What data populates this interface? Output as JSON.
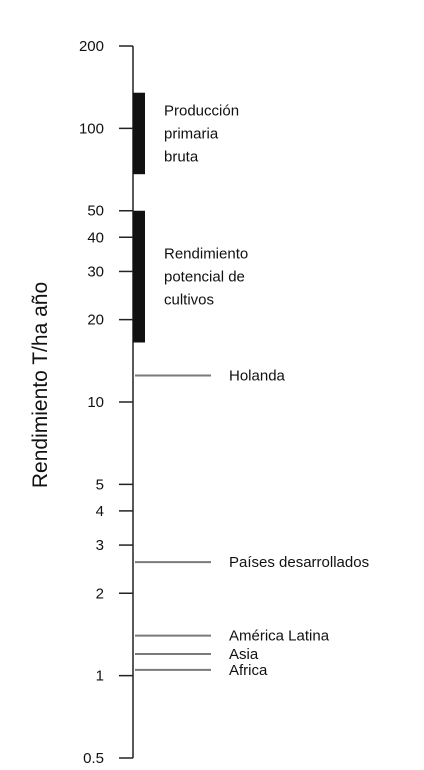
{
  "chart_data": {
    "type": "log-scale range chart",
    "ylabel": "Rendimiento T/ha año",
    "yscale": "log",
    "ylim": [
      0.5,
      200
    ],
    "yticks": [
      {
        "value": 200,
        "label": "200"
      },
      {
        "value": 100,
        "label": "100"
      },
      {
        "value": 50,
        "label": "50"
      },
      {
        "value": 40,
        "label": "40"
      },
      {
        "value": 30,
        "label": "30"
      },
      {
        "value": 20,
        "label": "20"
      },
      {
        "value": 10,
        "label": "10"
      },
      {
        "value": 5,
        "label": "5"
      },
      {
        "value": 4,
        "label": "4"
      },
      {
        "value": 3,
        "label": "3"
      },
      {
        "value": 2,
        "label": "2"
      },
      {
        "value": 1,
        "label": "1"
      },
      {
        "value": 0.5,
        "label": "0.5"
      }
    ],
    "ranges": [
      {
        "lines": [
          "Producción",
          "primaria",
          "bruta"
        ],
        "low": 68,
        "high": 135
      },
      {
        "lines": [
          "Rendimiento",
          "potencial de",
          "cultivos"
        ],
        "low": 16.5,
        "high": 50
      }
    ],
    "markers": [
      {
        "label": "Holanda",
        "value": 12.5
      },
      {
        "label": "Países desarrollados",
        "value": 2.6
      },
      {
        "label": "América Latina",
        "value": 1.4
      },
      {
        "label": "Asia",
        "value": 1.2
      },
      {
        "label": "Africa",
        "value": 1.05
      }
    ],
    "colors": {
      "axis": "#222222",
      "range_bar": "#111111",
      "marker_line": "#7a7a7a",
      "text": "#111111"
    }
  }
}
